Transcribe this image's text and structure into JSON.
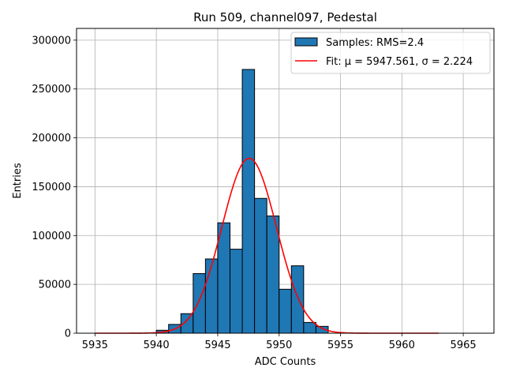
{
  "chart_data": {
    "type": "bar",
    "title": "Run 509, channel097, Pedestal",
    "xlabel": "ADC Counts",
    "ylabel": "Entries",
    "xlim": [
      5933.5,
      5967.5
    ],
    "ylim": [
      0,
      312000
    ],
    "xticks": [
      5935,
      5940,
      5945,
      5950,
      5955,
      5960,
      5965
    ],
    "yticks": [
      0,
      50000,
      100000,
      150000,
      200000,
      250000,
      300000
    ],
    "grid": true,
    "legend_position": "top-right",
    "bar_color": "#1f77b4",
    "bar_edge_color": "#000000",
    "fit_color": "#ff0000",
    "series": [
      {
        "name": "Samples: RMS=2.4",
        "bins": [
          {
            "left": 5940,
            "right": 5941,
            "value": 3000
          },
          {
            "left": 5941,
            "right": 5942,
            "value": 9000
          },
          {
            "left": 5942,
            "right": 5943,
            "value": 20000
          },
          {
            "left": 5943,
            "right": 5944,
            "value": 61000
          },
          {
            "left": 5944,
            "right": 5945,
            "value": 76000
          },
          {
            "left": 5945,
            "right": 5946,
            "value": 113000
          },
          {
            "left": 5946,
            "right": 5947,
            "value": 86000
          },
          {
            "left": 5947,
            "right": 5948,
            "value": 270000
          },
          {
            "left": 5948,
            "right": 5949,
            "value": 138000
          },
          {
            "left": 5949,
            "right": 5950,
            "value": 120000
          },
          {
            "left": 5950,
            "right": 5951,
            "value": 45000
          },
          {
            "left": 5951,
            "right": 5952,
            "value": 69000
          },
          {
            "left": 5952,
            "right": 5953,
            "value": 11000
          },
          {
            "left": 5953,
            "right": 5954,
            "value": 7000
          }
        ]
      },
      {
        "name": "Fit: μ = 5947.561, σ = 2.224",
        "type": "line",
        "mu": 5947.561,
        "sigma": 2.224,
        "amplitude": 179000,
        "x_range": [
          5935,
          5963
        ]
      }
    ]
  }
}
